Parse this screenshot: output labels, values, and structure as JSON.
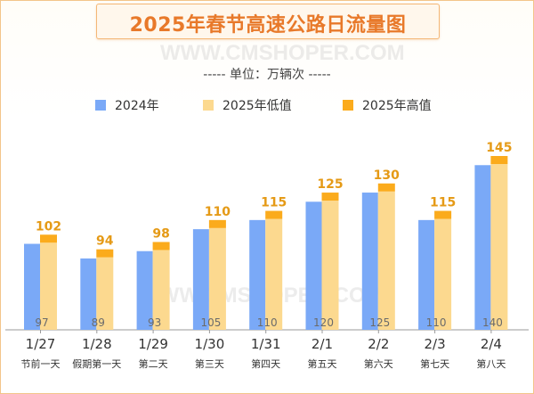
{
  "title": "2025年春节高速公路日流量图",
  "unit_label": "----- 单位：万辆次 -----",
  "watermark": "WWW.CMSHOPER.COM",
  "colors": {
    "series_2024": "#7aa9f7",
    "series_2025_low": "#fcd98f",
    "series_2025_high": "#fbab1c",
    "label_2025": "#e59a16",
    "label_2024": "#6b6b6b",
    "frame": "#f3c58a"
  },
  "chart_data": {
    "type": "bar",
    "categories": [
      "1/27",
      "1/28",
      "1/29",
      "1/30",
      "1/31",
      "2/1",
      "2/2",
      "2/3",
      "2/4"
    ],
    "sublabels": [
      "节前一天",
      "假期第一天",
      "第二天",
      "第三天",
      "第四天",
      "第五天",
      "第六天",
      "第七天",
      "第八天"
    ],
    "series": [
      {
        "name": "2024年",
        "values": [
          97,
          89,
          93,
          105,
          110,
          120,
          125,
          110,
          140
        ]
      },
      {
        "name": "2025年低值",
        "values": [
          98,
          90,
          94,
          106,
          111,
          121,
          126,
          111,
          141
        ]
      },
      {
        "name": "2025年高值",
        "values": [
          102,
          94,
          98,
          110,
          115,
          125,
          130,
          115,
          145
        ]
      }
    ],
    "ylim": [
      0,
      145
    ],
    "grid": false,
    "legend_position": "top"
  }
}
